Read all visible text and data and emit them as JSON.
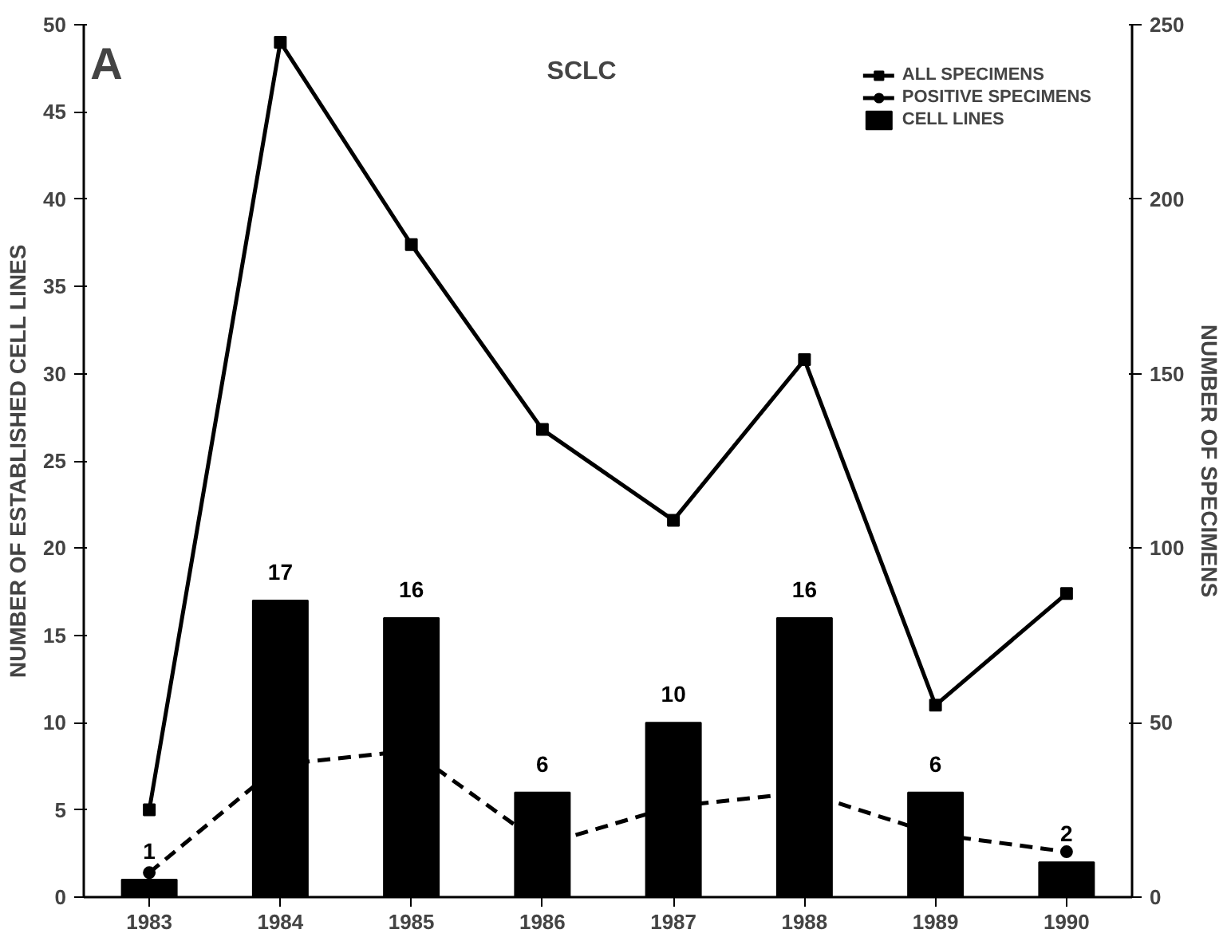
{
  "chart_data": {
    "type": "bar",
    "title": "SCLC",
    "ylabel": "NUMBER OF ESTABLISHED CELL LINES",
    "y2label": "NUMBER OF SPECIMENS",
    "annotations": [
      "A"
    ],
    "categories": [
      "1983",
      "1984",
      "1985",
      "1986",
      "1987",
      "1988",
      "1989",
      "1990"
    ],
    "series": [
      {
        "name": "ALL SPECIMENS",
        "type": "line",
        "axis": "y2",
        "color": "#000000",
        "marker": "square",
        "line_style": "solid",
        "values": [
          25,
          245,
          187,
          134,
          108,
          154,
          55,
          87
        ]
      },
      {
        "name": "POSITIVE SPECIMENS",
        "type": "line",
        "axis": "y2",
        "color": "#000000",
        "marker": "circle",
        "line_style": "dashed",
        "values": [
          7,
          38,
          42,
          15,
          26,
          30,
          18,
          13
        ]
      },
      {
        "name": "CELL LINES",
        "color": "#000000",
        "values": [
          1,
          17,
          16,
          6,
          10,
          16,
          6,
          2
        ],
        "value_labels": [
          "1",
          "17",
          "16",
          "6",
          "10",
          "16",
          "6",
          "2"
        ]
      }
    ],
    "ylim": [
      0,
      50
    ],
    "yticks": [
      0,
      5,
      10,
      15,
      20,
      25,
      30,
      35,
      40,
      45,
      50
    ],
    "y2lim": [
      0,
      250
    ],
    "y2ticks": [
      0,
      50,
      100,
      150,
      200,
      250
    ],
    "legend": "top right",
    "grid": false
  }
}
